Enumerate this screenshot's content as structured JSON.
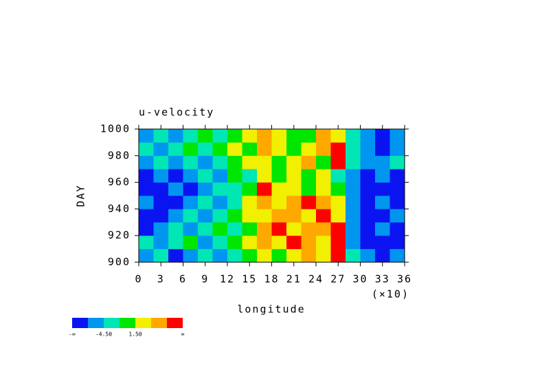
{
  "chart_data": {
    "type": "heatmap",
    "title": "u-velocity",
    "x_label": "longitude",
    "x_multiplier": "(×10)",
    "y_label": "DAY",
    "xlim": [
      0,
      36
    ],
    "xticks": [
      0,
      3,
      6,
      9,
      12,
      15,
      18,
      21,
      24,
      27,
      30,
      33,
      36
    ],
    "ylim": [
      900,
      1000
    ],
    "yticks": [
      900,
      920,
      940,
      960,
      980,
      1000
    ],
    "x": [
      1,
      3,
      5,
      7,
      9,
      11,
      13,
      15,
      17,
      19,
      21,
      23,
      25,
      27,
      29,
      31,
      33,
      35
    ],
    "y": [
      905,
      915,
      925,
      935,
      945,
      955,
      965,
      975,
      985,
      995
    ],
    "z": [
      [
        -6,
        -3,
        -9,
        -6,
        -3,
        -6,
        -3,
        0,
        3,
        0,
        3,
        6,
        3,
        9,
        -3,
        -6,
        -9,
        -6
      ],
      [
        -3,
        -6,
        -3,
        0,
        -6,
        -3,
        0,
        3,
        6,
        3,
        9,
        6,
        3,
        9,
        -6,
        -9,
        -9,
        -9
      ],
      [
        -9,
        -6,
        -3,
        -6,
        -3,
        0,
        -3,
        0,
        6,
        9,
        3,
        6,
        6,
        9,
        -6,
        -9,
        -6,
        -9
      ],
      [
        -9,
        -9,
        -6,
        -3,
        -6,
        -3,
        0,
        3,
        3,
        6,
        6,
        3,
        9,
        3,
        -6,
        -9,
        -9,
        -6
      ],
      [
        -6,
        -9,
        -9,
        -6,
        -3,
        -6,
        -3,
        3,
        6,
        3,
        6,
        9,
        6,
        3,
        -6,
        -9,
        -6,
        -9
      ],
      [
        -9,
        -9,
        -6,
        -9,
        -6,
        -3,
        -3,
        0,
        9,
        3,
        3,
        0,
        3,
        0,
        -6,
        -9,
        -9,
        -9
      ],
      [
        -9,
        -6,
        -9,
        -6,
        -3,
        -6,
        0,
        -3,
        3,
        0,
        3,
        0,
        3,
        -3,
        -6,
        -9,
        -6,
        -9
      ],
      [
        -6,
        -3,
        -6,
        -3,
        -6,
        -3,
        0,
        3,
        3,
        0,
        3,
        6,
        0,
        9,
        -3,
        -6,
        -6,
        -3
      ],
      [
        -3,
        -6,
        -3,
        0,
        -3,
        0,
        3,
        0,
        6,
        3,
        0,
        3,
        6,
        9,
        -3,
        -6,
        -9,
        -6
      ],
      [
        -6,
        -3,
        -6,
        -3,
        0,
        -3,
        0,
        3,
        6,
        3,
        0,
        0,
        6,
        3,
        -3,
        -6,
        -9,
        -6
      ]
    ],
    "colorbar": {
      "levels": [
        -7.5,
        -4.5,
        -1.5,
        1.5,
        4.5,
        7.5
      ],
      "colors": [
        "#0a14f0",
        "#0096f0",
        "#00e6b4",
        "#00e600",
        "#f0f000",
        "#ffa800",
        "#ff0000"
      ],
      "ticks": [
        {
          "value": -4.5,
          "label": "-4.50"
        },
        {
          "value": 1.5,
          "label": "1.50"
        }
      ],
      "ends": [
        "-∞",
        "∞"
      ]
    }
  }
}
